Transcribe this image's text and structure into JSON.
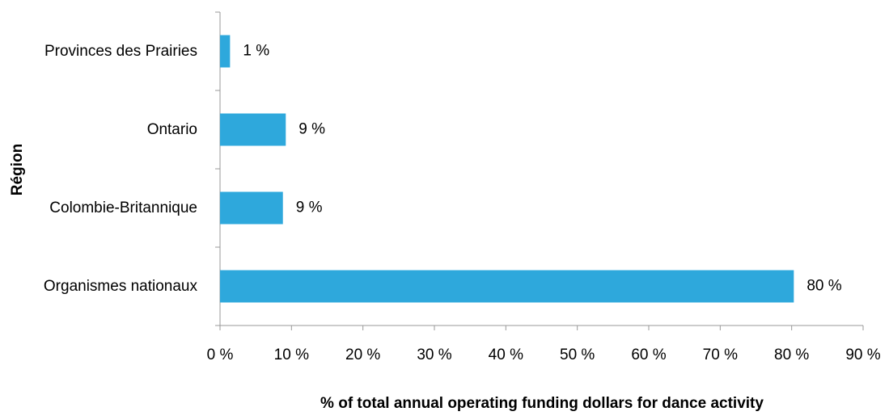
{
  "chart_data": {
    "type": "bar",
    "orientation": "horizontal",
    "y_axis_label": "Région",
    "x_axis_label": "% of total annual operating funding dollars for dance activity",
    "categories": [
      "Provinces des Prairies",
      "Ontario",
      "Colombie-Britannique",
      "Organismes nationaux"
    ],
    "values": [
      1.4,
      9.2,
      8.8,
      80.3
    ],
    "value_labels": [
      "1 %",
      "9 %",
      "9 %",
      "80 %"
    ],
    "color": "#2ea8dc",
    "xlim": [
      0,
      90
    ],
    "xticks": [
      {
        "value": 0,
        "label": "0 %"
      },
      {
        "value": 10,
        "label": "10 %"
      },
      {
        "value": 20,
        "label": "20 %"
      },
      {
        "value": 30,
        "label": "30 %"
      },
      {
        "value": 40,
        "label": "40 %"
      },
      {
        "value": 50,
        "label": "50 %"
      },
      {
        "value": 60,
        "label": "60 %"
      },
      {
        "value": 70,
        "label": "70 %"
      },
      {
        "value": 80,
        "label": "80 %"
      },
      {
        "value": 90,
        "label": "90 %"
      }
    ]
  }
}
